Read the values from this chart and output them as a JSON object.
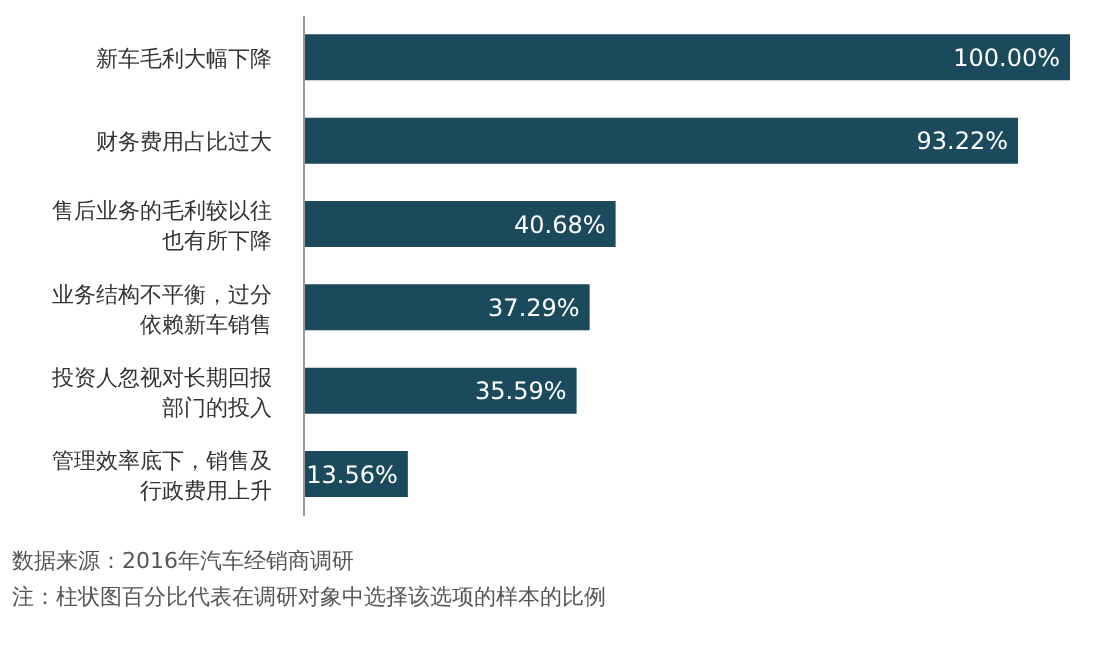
{
  "chart_data": {
    "type": "bar",
    "orientation": "horizontal",
    "categories": [
      "新车毛利大幅下降",
      "财务费用占比过大",
      "售后业务的毛利较以往也有所下降",
      "业务结构不平衡，过分依赖新车销售",
      "投资人忽视对长期回报部门的投入",
      "管理效率底下，销售及行政费用上升"
    ],
    "values": [
      100.0,
      93.22,
      40.68,
      37.29,
      35.59,
      13.56
    ],
    "value_labels": [
      "100.00%",
      "93.22%",
      "40.68%",
      "37.29%",
      "35.59%",
      "13.56%"
    ],
    "color": "#1b4a5c",
    "annotations": [
      "数据来源：2016年汽车经销商调研",
      "注：柱状图百分比代表在调研对象中选择该选项的样本的比例"
    ]
  }
}
